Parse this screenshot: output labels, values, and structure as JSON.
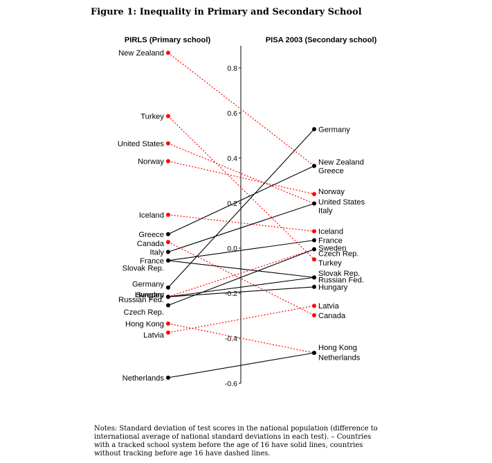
{
  "figure": {
    "title": "Figure 1: Inequality in Primary and Secondary School",
    "notes": "Notes: Standard deviation of test scores in the national population (difference to international average of national standard deviations in each test). – Countries with a tracked school system before the age of 16 have solid lines, countries without tracking before age 16 have dashed lines."
  },
  "chart_data": {
    "type": "slope",
    "left_title": "PIRLS (Primary school)",
    "right_title": "PISA 2003 (Secondary school)",
    "ylim": [
      -0.6,
      0.9
    ],
    "yticks": [
      {
        "v": 0.8,
        "label": "0.8"
      },
      {
        "v": 0.6,
        "label": "0.6"
      },
      {
        "v": 0.4,
        "label": "0.4"
      },
      {
        "v": 0.2,
        "label": "0.2"
      },
      {
        "v": 0.0,
        "label": "0.0"
      },
      {
        "v": -0.2,
        "label": "-0.2"
      },
      {
        "v": -0.4,
        "label": "-0.4"
      },
      {
        "v": -0.6,
        "label": "-0.6"
      }
    ],
    "colors": {
      "tracked": "#000000",
      "untracked": "#ff0000"
    },
    "series": [
      {
        "name": "New Zealand",
        "left": 0.867,
        "right": 0.365,
        "tracked": false,
        "left_label": "New Zealand",
        "right_label": "New Zealand",
        "left_label_y": 0.867,
        "right_label_y": 0.383
      },
      {
        "name": "Turkey",
        "left": 0.586,
        "right": -0.05,
        "tracked": false,
        "left_label": "Turkey",
        "right_label": "Turkey",
        "left_label_y": 0.586,
        "right_label_y": -0.065
      },
      {
        "name": "United States",
        "left": 0.465,
        "right": 0.198,
        "tracked": false,
        "left_label": "United States",
        "right_label": "United States",
        "left_label_y": 0.465,
        "right_label_y": 0.206
      },
      {
        "name": "Norway",
        "left": 0.386,
        "right": 0.24,
        "tracked": false,
        "left_label": "Norway",
        "right_label": "Norway",
        "left_label_y": 0.386,
        "right_label_y": 0.252
      },
      {
        "name": "Iceland",
        "left": 0.148,
        "right": 0.075,
        "tracked": false,
        "left_label": "Iceland",
        "right_label": "Iceland",
        "left_label_y": 0.148,
        "right_label_y": 0.075
      },
      {
        "name": "Greece",
        "left": 0.062,
        "right": 0.365,
        "tracked": true,
        "left_label": "Greece",
        "right_label": "Greece",
        "left_label_y": 0.062,
        "right_label_y": 0.345
      },
      {
        "name": "Canada",
        "left": 0.027,
        "right": -0.298,
        "tracked": false,
        "left_label": "Canada",
        "right_label": "Canada",
        "left_label_y": 0.022,
        "right_label_y": -0.298
      },
      {
        "name": "Italy",
        "left": -0.017,
        "right": 0.198,
        "tracked": true,
        "left_label": "Italy",
        "right_label": "Italy",
        "left_label_y": -0.017,
        "right_label_y": 0.168
      },
      {
        "name": "France",
        "left": -0.055,
        "right": 0.035,
        "tracked": true,
        "left_label": "France",
        "right_label": "France",
        "left_label_y": -0.055,
        "right_label_y": 0.035
      },
      {
        "name": "Slovak Rep.",
        "left": -0.055,
        "right": -0.13,
        "tracked": true,
        "left_label": "Slovak Rep.",
        "right_label": "Slovak Rep.",
        "left_label_y": -0.088,
        "right_label_y": -0.11
      },
      {
        "name": "Germany",
        "left": -0.175,
        "right": 0.528,
        "tracked": true,
        "left_label": "Germany",
        "right_label": "Germany",
        "left_label_y": -0.158,
        "right_label_y": 0.528
      },
      {
        "name": "Hungary",
        "left": -0.216,
        "right": -0.172,
        "tracked": true,
        "left_label": "Hungary",
        "right_label": "Hungary",
        "left_label_y": -0.206,
        "right_label_y": -0.172
      },
      {
        "name": "Sweden",
        "left": -0.216,
        "right": -0.005,
        "tracked": false,
        "left_label": "Sweden",
        "right_label": "Sweden",
        "left_label_y": -0.206,
        "right_label_y": 0.002
      },
      {
        "name": "Russian Fed.",
        "left": -0.216,
        "right": -0.13,
        "tracked": true,
        "left_label": "Russian Fed.",
        "right_label": "Russian Fed.",
        "left_label_y": -0.228,
        "right_label_y": -0.14
      },
      {
        "name": "Czech Rep.",
        "left": -0.254,
        "right": -0.005,
        "tracked": true,
        "left_label": "Czech Rep.",
        "right_label": "Czech Rep.",
        "left_label_y": -0.283,
        "right_label_y": -0.023
      },
      {
        "name": "Latvia",
        "left": -0.375,
        "right": -0.256,
        "tracked": false,
        "left_label": "Latvia",
        "right_label": "Latvia",
        "left_label_y": -0.385,
        "right_label_y": -0.256
      },
      {
        "name": "Hong Kong",
        "left": -0.335,
        "right": -0.465,
        "tracked": false,
        "left_label": "Hong Kong",
        "right_label": "Hong Kong",
        "left_label_y": -0.335,
        "right_label_y": -0.44
      },
      {
        "name": "Netherlands",
        "left": -0.575,
        "right": -0.465,
        "tracked": true,
        "left_label": "Netherlands",
        "right_label": "Netherlands",
        "left_label_y": -0.575,
        "right_label_y": -0.485
      }
    ]
  }
}
